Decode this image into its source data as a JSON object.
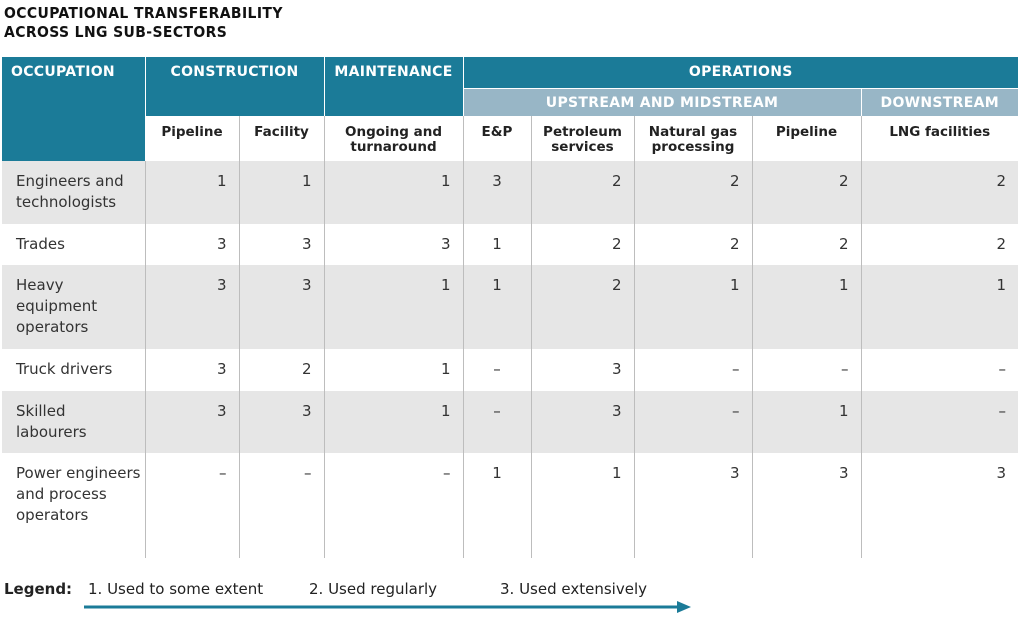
{
  "title": {
    "line1": "OCCUPATIONAL TRANSFERABILITY",
    "line2": "ACROSS LNG SUB-SECTORS"
  },
  "header": {
    "occupation": "OCCUPATION",
    "construction": "CONSTRUCTION",
    "maintenance": "MAINTENANCE",
    "operations": "OPERATIONS",
    "upstream_midstream": "UPSTREAM AND MIDSTREAM",
    "downstream": "DOWNSTREAM"
  },
  "columns": [
    "Pipeline",
    "Facility",
    "Ongoing and turnaround",
    "E&P",
    "Petroleum services",
    "Natural gas processing",
    "Pipeline",
    "LNG facilities"
  ],
  "rows": [
    {
      "label": "Engineers and technologists",
      "values": [
        "1",
        "1",
        "1",
        "3",
        "2",
        "2",
        "2",
        "2"
      ]
    },
    {
      "label": "Trades",
      "values": [
        "3",
        "3",
        "3",
        "1",
        "2",
        "2",
        "2",
        "2"
      ]
    },
    {
      "label": "Heavy equipment operators",
      "values": [
        "3",
        "3",
        "1",
        "1",
        "2",
        "1",
        "1",
        "1"
      ]
    },
    {
      "label": "Truck drivers",
      "values": [
        "3",
        "2",
        "1",
        "–",
        "3",
        "–",
        "–",
        "–"
      ]
    },
    {
      "label": "Skilled labourers",
      "values": [
        "3",
        "3",
        "1",
        "–",
        "3",
        "–",
        "1",
        "–"
      ]
    },
    {
      "label": "Power engineers and process operators",
      "values": [
        "–",
        "–",
        "–",
        "1",
        "1",
        "3",
        "3",
        "3"
      ]
    }
  ],
  "legend": {
    "label": "Legend:",
    "items": [
      "1.  Used to some extent",
      "2.  Used regularly",
      "3.  Used extensively"
    ]
  },
  "colors": {
    "header_blue": "#1b7b98",
    "subheader_blue": "#98b6c6",
    "row_shade": "#e6e6e6"
  }
}
